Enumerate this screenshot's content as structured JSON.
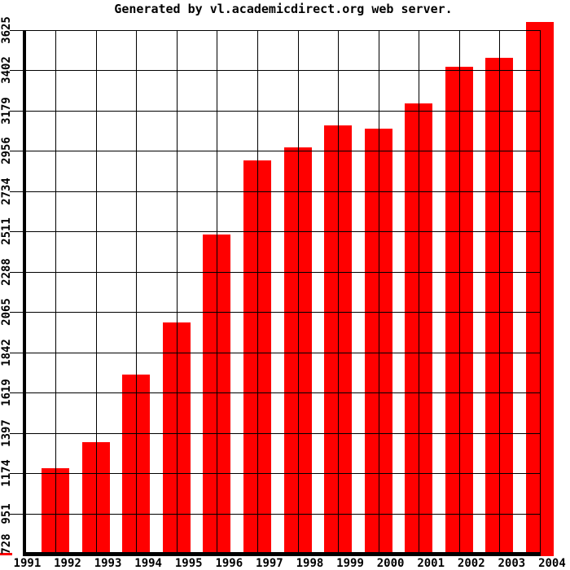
{
  "title": "Generated by vl.academicdirect.org web server.",
  "chart_data": {
    "type": "bar",
    "title": "Generated by vl.academicdirect.org web server.",
    "categories": [
      "1991",
      "1992",
      "1993",
      "1994",
      "1995",
      "1996",
      "1997",
      "1998",
      "1999",
      "2000",
      "2001",
      "2002",
      "2003",
      "2004"
    ],
    "values": [
      728,
      1199,
      1344,
      1718,
      2007,
      2493,
      2903,
      2977,
      3096,
      3078,
      3221,
      3423,
      3473,
      3625
    ],
    "y_ticks": [
      728,
      951,
      1174,
      1397,
      1619,
      1842,
      2065,
      2288,
      2511,
      2734,
      2956,
      3179,
      3402,
      3625
    ],
    "ylim": [
      728,
      3625
    ],
    "xlabel": "",
    "ylabel": "",
    "grid": true,
    "legend": "none",
    "bar_color": "#ff0000",
    "grid_color": "#000000",
    "axis_color": "#000000",
    "background_color": "#ffffff"
  }
}
